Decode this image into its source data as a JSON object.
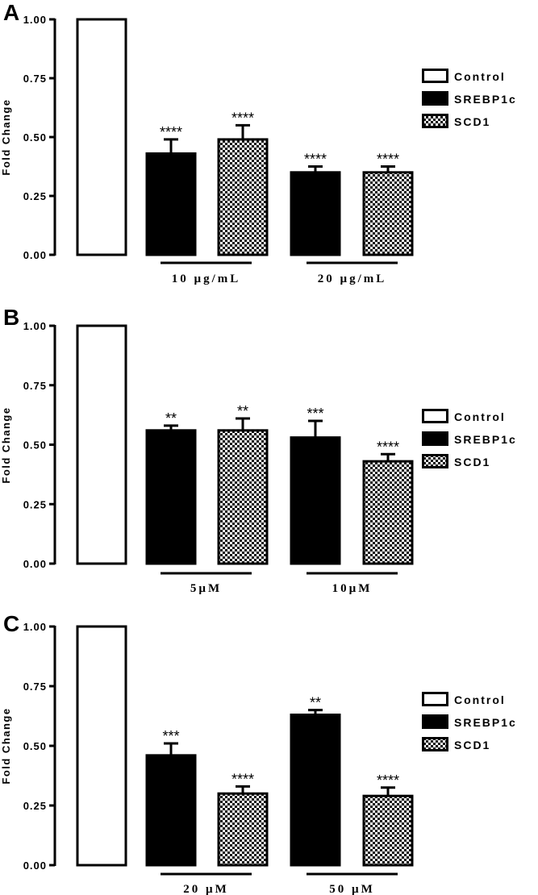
{
  "chart_data": [
    {
      "panel": "A",
      "type": "bar",
      "ylabel": "Fold Change",
      "ylim": [
        0,
        1.0
      ],
      "yticks": [
        "0.00",
        "0.25",
        "0.50",
        "0.75",
        "1.00"
      ],
      "legend": [
        "Control",
        "SREBP1c",
        "SCD1"
      ],
      "groups": [
        "10 µg/mL",
        "20 µg/mL"
      ],
      "bars": [
        {
          "series": "Control",
          "group": "",
          "value": 1.0,
          "error": 0,
          "sig": ""
        },
        {
          "series": "SREBP1c",
          "group": "10 µg/mL",
          "value": 0.43,
          "error": 0.06,
          "sig": "****"
        },
        {
          "series": "SCD1",
          "group": "10 µg/mL",
          "value": 0.49,
          "error": 0.06,
          "sig": "****"
        },
        {
          "series": "SREBP1c",
          "group": "20 µg/mL",
          "value": 0.35,
          "error": 0.025,
          "sig": "****"
        },
        {
          "series": "SCD1",
          "group": "20 µg/mL",
          "value": 0.35,
          "error": 0.025,
          "sig": "****"
        }
      ]
    },
    {
      "panel": "B",
      "type": "bar",
      "ylabel": "Fold Change",
      "ylim": [
        0,
        1.0
      ],
      "yticks": [
        "0.00",
        "0.25",
        "0.50",
        "0.75",
        "1.00"
      ],
      "legend": [
        "Control",
        "SREBP1c",
        "SCD1"
      ],
      "groups": [
        "5µM",
        "10µM"
      ],
      "bars": [
        {
          "series": "Control",
          "group": "",
          "value": 1.0,
          "error": 0,
          "sig": ""
        },
        {
          "series": "SREBP1c",
          "group": "5µM",
          "value": 0.56,
          "error": 0.02,
          "sig": "**"
        },
        {
          "series": "SCD1",
          "group": "5µM",
          "value": 0.56,
          "error": 0.05,
          "sig": "**"
        },
        {
          "series": "SREBP1c",
          "group": "10µM",
          "value": 0.53,
          "error": 0.07,
          "sig": "***"
        },
        {
          "series": "SCD1",
          "group": "10µM",
          "value": 0.43,
          "error": 0.03,
          "sig": "****"
        }
      ]
    },
    {
      "panel": "C",
      "type": "bar",
      "ylabel": "Fold Change",
      "ylim": [
        0,
        1.0
      ],
      "yticks": [
        "0.00",
        "0.25",
        "0.50",
        "0.75",
        "1.00"
      ],
      "legend": [
        "Control",
        "SREBP1c",
        "SCD1"
      ],
      "groups": [
        "20 µM",
        "50 µM"
      ],
      "bars": [
        {
          "series": "Control",
          "group": "",
          "value": 1.0,
          "error": 0,
          "sig": ""
        },
        {
          "series": "SREBP1c",
          "group": "20 µM",
          "value": 0.46,
          "error": 0.05,
          "sig": "***"
        },
        {
          "series": "SCD1",
          "group": "20 µM",
          "value": 0.3,
          "error": 0.03,
          "sig": "****"
        },
        {
          "series": "SREBP1c",
          "group": "50 µM",
          "value": 0.63,
          "error": 0.02,
          "sig": "**"
        },
        {
          "series": "SCD1",
          "group": "50 µM",
          "value": 0.29,
          "error": 0.035,
          "sig": "****"
        }
      ]
    }
  ]
}
